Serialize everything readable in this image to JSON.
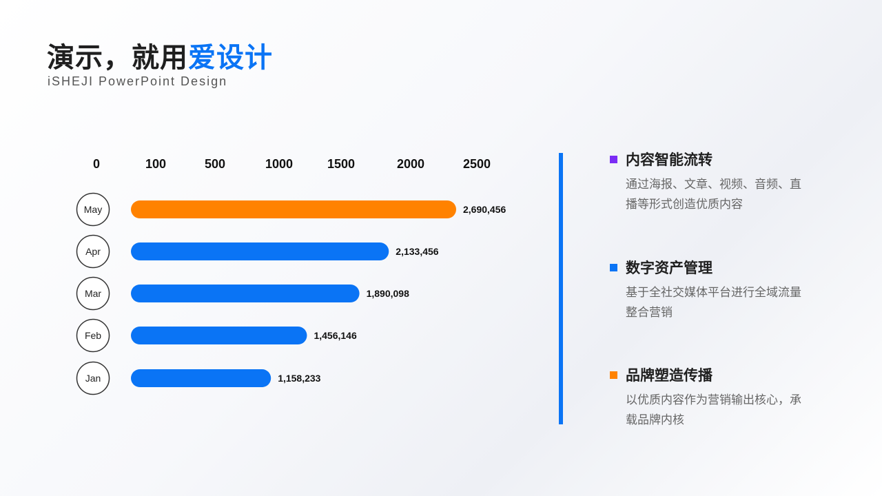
{
  "header": {
    "title_part1": "演示，就用",
    "title_part2": "爱设计",
    "subtitle": "iSHEJI PowerPoint Design"
  },
  "colors": {
    "accent_blue": "#0a74f5",
    "highlight_orange": "#ff8200",
    "purple": "#7b2cf5"
  },
  "chart_data": {
    "type": "bar",
    "orientation": "horizontal",
    "categories": [
      "May",
      "Apr",
      "Mar",
      "Feb",
      "Jan"
    ],
    "values": [
      2690456,
      2133456,
      1890098,
      1456146,
      1158233
    ],
    "value_labels": [
      "2,690,456",
      "2,133,456",
      "1,890,098",
      "1,456,146",
      "1,158,233"
    ],
    "highlight_category": "May",
    "x_ticks": [
      "0",
      "100",
      "500",
      "1000",
      "1500",
      "2000",
      "2500"
    ],
    "title": "",
    "xlabel": "",
    "ylabel": ""
  },
  "features": [
    {
      "name": "内容智能流转",
      "description": "通过海报、文章、视频、音频、直播等形式创造优质内容",
      "color": "#7b2cf5"
    },
    {
      "name": "数字资产管理",
      "description": "基于全社交媒体平台进行全域流量整合营销",
      "color": "#0a74f5"
    },
    {
      "name": "品牌塑造传播",
      "description": "以优质内容作为营销输出核心，承载品牌内核",
      "color": "#ff8200"
    }
  ]
}
